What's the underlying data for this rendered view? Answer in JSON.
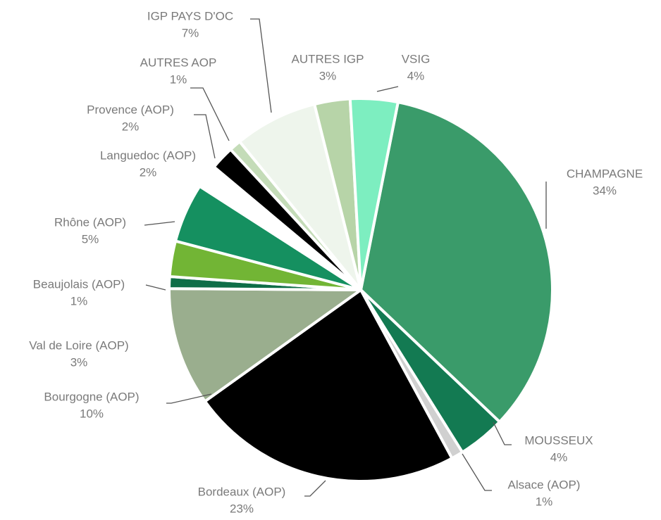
{
  "chart_data": {
    "type": "pie",
    "categories": [
      "CHAMPAGNE",
      "MOUSSEUX",
      "Alsace (AOP)",
      "Bordeaux (AOP)",
      "Bourgogne (AOP)",
      "Beaujolais (AOP)",
      "Val de Loire (AOP)",
      "Rhône (AOP)",
      "Languedoc (AOP)",
      "Provence (AOP)",
      "AUTRES AOP",
      "IGP PAYS D'OC",
      "AUTRES IGP",
      "VSIG"
    ],
    "values": [
      34,
      4,
      1,
      23,
      10,
      1,
      3,
      5,
      2,
      2,
      1,
      7,
      3,
      4
    ],
    "value_labels": [
      "34%",
      "4%",
      "1%",
      "23%",
      "10%",
      "1%",
      "3%",
      "5%",
      "2%",
      "2%",
      "1%",
      "7%",
      "3%",
      "4%"
    ],
    "colors": [
      "#3a9b6a",
      "#137a52",
      "#d0d0d0",
      "#000000",
      "#9aae8e",
      "#0f6e48",
      "#72b535",
      "#159060",
      "#ffffff",
      "#000000",
      "#c4dcb8",
      "#eef5ec",
      "#b7d4a8",
      "#7deec0"
    ]
  }
}
